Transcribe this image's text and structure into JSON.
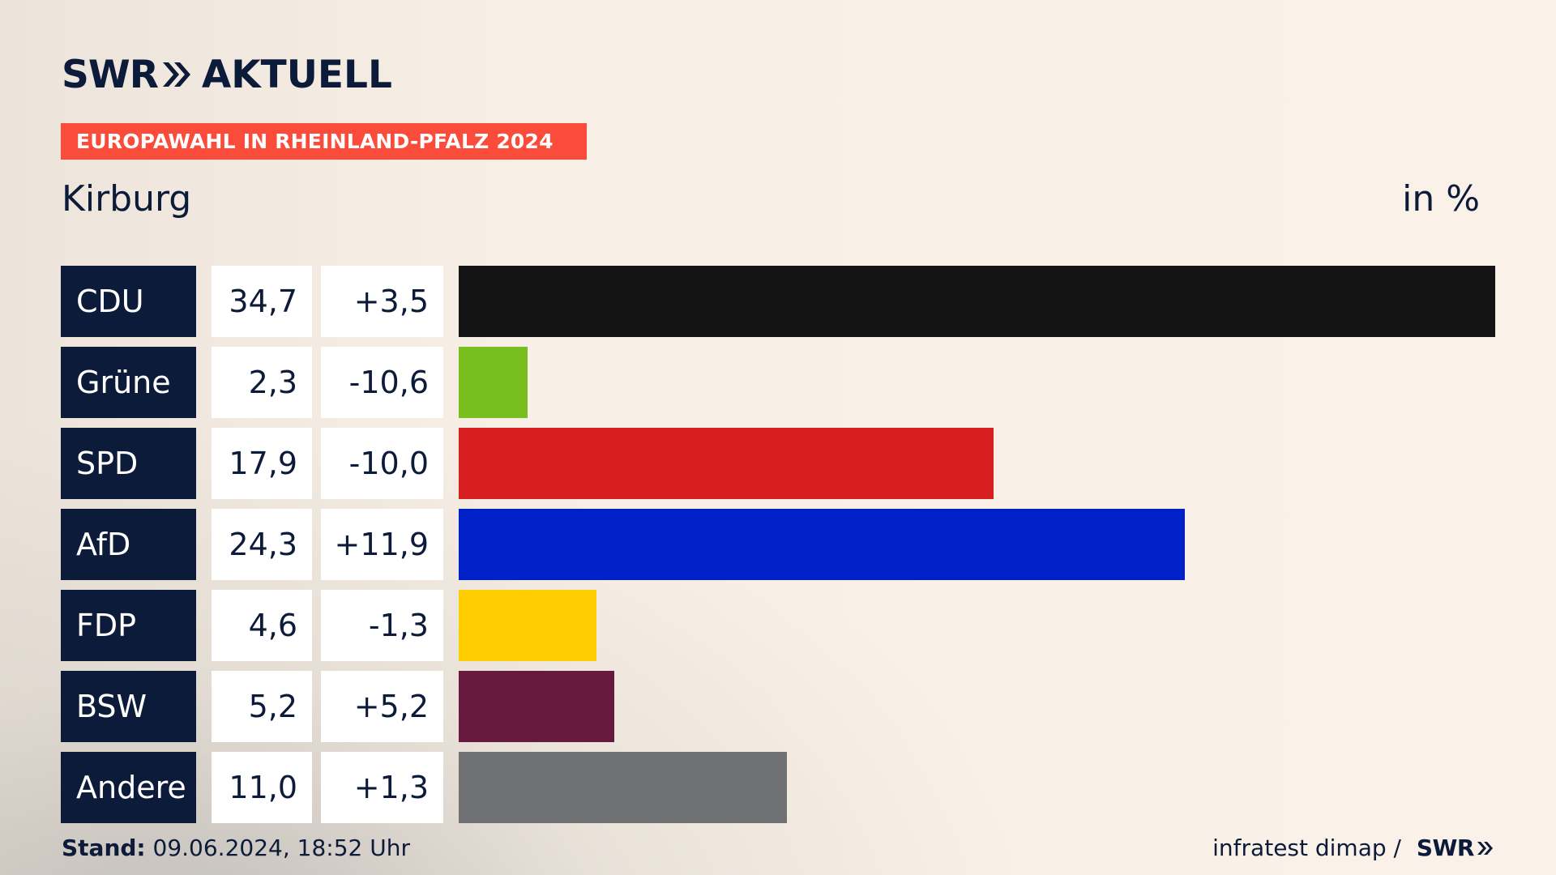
{
  "brand": {
    "swr": "SWR",
    "aktuell": "AKTUELL",
    "chevron_icon": "double-chevron-right-icon"
  },
  "banner": {
    "label": "EUROPAWAHL IN RHEINLAND-PFALZ 2024",
    "color": "#fb4b3a"
  },
  "location": "Kirburg",
  "unit": "in %",
  "footer": {
    "stand_label": "Stand:",
    "stand_value": " 09.06.2024, 18:52 Uhr",
    "source": "infratest dimap / ",
    "swr": "SWR"
  },
  "chart_data": {
    "type": "bar",
    "orientation": "horizontal",
    "title": "",
    "categories": [
      "CDU",
      "Grüne",
      "SPD",
      "AfD",
      "FDP",
      "BSW",
      "Andere"
    ],
    "values": [
      34.7,
      2.3,
      17.9,
      24.3,
      4.6,
      5.2,
      11.0
    ],
    "value_labels": [
      "34,7",
      "2,3",
      "17,9",
      "24,3",
      "4,6",
      "5,2",
      "11,0"
    ],
    "changes": [
      "+3,5",
      "-10,6",
      "-10,0",
      "+11,9",
      "-1,3",
      "+5,2",
      "+1,3"
    ],
    "colors": [
      "#141414",
      "#78be1e",
      "#d81f1f",
      "#0021c8",
      "#ffcd00",
      "#671a3e",
      "#707173"
    ],
    "xlim": [
      0,
      34.7
    ],
    "grid": false
  }
}
